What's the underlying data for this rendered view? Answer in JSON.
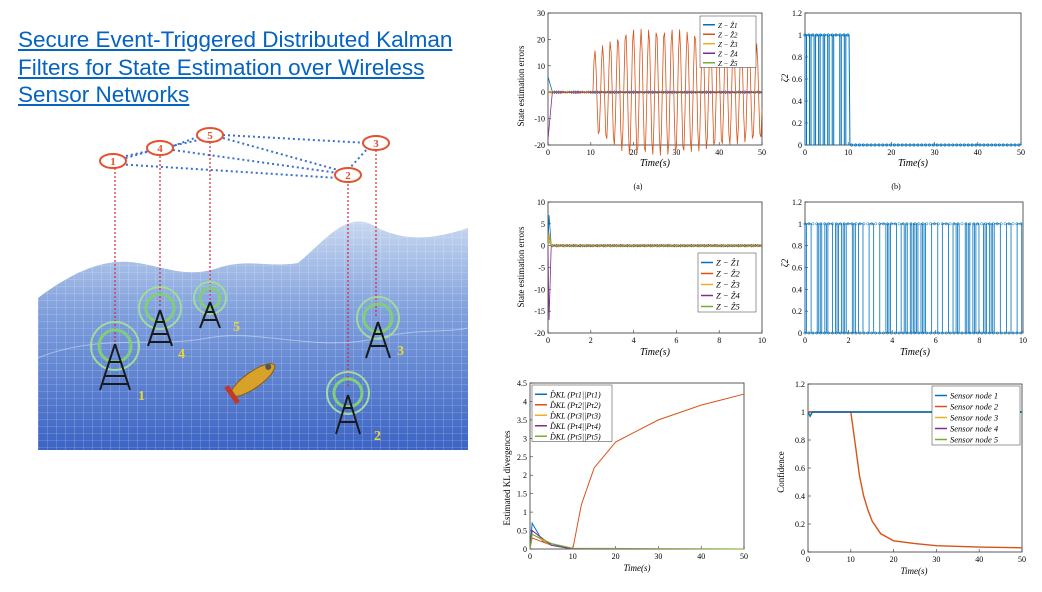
{
  "slide": {
    "title": "Secure Event-Triggered Distributed Kalman Filters for State Estimation over Wireless Sensor Networks"
  },
  "illustration": {
    "node_labels_top": [
      "1",
      "4",
      "5",
      "3",
      "2"
    ],
    "tower_labels": [
      "1",
      "4",
      "5",
      "3",
      "2"
    ]
  },
  "panel_captions": [
    "(a)",
    "(b)"
  ],
  "chart_data": [
    {
      "type": "line",
      "panel": "top-left",
      "ylabel": "State estimation errors",
      "xlabel": "Time(s)",
      "xlim": [
        0,
        50
      ],
      "ylim": [
        -20,
        30
      ],
      "xticks": [
        "0",
        "10",
        "20",
        "30",
        "40",
        "50"
      ],
      "yticks": [
        "30",
        "20",
        "10",
        "0",
        "-10",
        "-20"
      ],
      "legend": [
        "Z − Ẑ1",
        "Z − Ẑ2",
        "Z − Ẑ3",
        "Z − Ẑ4",
        "Z − Ẑ5"
      ],
      "legend_position": "top-right",
      "series": [
        {
          "name": "Z − Ẑ1",
          "color": "#0072bd",
          "note_values": {
            "x": [
              0,
              0.5,
              1,
              50
            ],
            "y": [
              0,
              6,
              0,
              0
            ]
          }
        },
        {
          "name": "Z − Ẑ2",
          "color": "#d95319",
          "note_values": {
            "x": [
              0,
              10,
              10.5,
              15,
              20,
              25,
              30,
              35,
              40,
              45,
              50
            ],
            "y": [
              0,
              0,
              15,
              22,
              24,
              25,
              24,
              23,
              20,
              18,
              18
            ],
            "envelope": "oscillating ± after t=10"
          }
        },
        {
          "name": "Z − Ẑ3",
          "color": "#edb120",
          "note_values": {
            "x": [
              0,
              50
            ],
            "y": [
              0,
              0
            ]
          }
        },
        {
          "name": "Z − Ẑ4",
          "color": "#7e2f8e",
          "note_values": {
            "x": [
              0,
              0.5,
              1,
              50
            ],
            "y": [
              0,
              -18,
              0,
              0
            ]
          }
        },
        {
          "name": "Z − Ẑ5",
          "color": "#77ac30",
          "note_values": {
            "x": [
              0,
              50
            ],
            "y": [
              0,
              0
            ]
          }
        }
      ]
    },
    {
      "type": "line",
      "panel": "top-right",
      "ylabel": "ζ2",
      "xlabel": "Time(s)",
      "xlim": [
        0,
        50
      ],
      "ylim": [
        0,
        1.2
      ],
      "xticks": [
        "0",
        "10",
        "20",
        "30",
        "40",
        "50"
      ],
      "yticks": [
        "1.2",
        "1",
        "0.8",
        "0.6",
        "0.4",
        "0.2",
        "0"
      ],
      "series": [
        {
          "name": "",
          "color": "#0072bd",
          "switch_until": 10,
          "value_after": 0
        }
      ]
    },
    {
      "type": "line",
      "panel": "middle-left",
      "ylabel": "State estimation errors",
      "xlabel": "Time(s)",
      "xlim": [
        0,
        10
      ],
      "ylim": [
        -20,
        10
      ],
      "xticks": [
        "0",
        "2",
        "4",
        "6",
        "8",
        "10"
      ],
      "yticks": [
        "10",
        "5",
        "0",
        "-5",
        "-10",
        "-15",
        "-20"
      ],
      "legend": [
        "Z − Ẑ1",
        "Z − Ẑ2",
        "Z − Ẑ3",
        "Z − Ẑ4",
        "Z − Ẑ5"
      ],
      "legend_position": "bottom-right",
      "series": [
        {
          "name": "Z − Ẑ1",
          "color": "#0072bd",
          "spike": 7
        },
        {
          "name": "Z − Ẑ2",
          "color": "#d95319",
          "spike": 2
        },
        {
          "name": "Z − Ẑ3",
          "color": "#edb120",
          "spike": 3
        },
        {
          "name": "Z − Ẑ4",
          "color": "#7e2f8e",
          "spike": -17
        },
        {
          "name": "Z − Ẑ5",
          "color": "#77ac30",
          "spike": 1
        }
      ]
    },
    {
      "type": "line",
      "panel": "middle-right",
      "ylabel": "ζ2",
      "xlabel": "Time(s)",
      "xlim": [
        0,
        10
      ],
      "ylim": [
        0,
        1.2
      ],
      "xticks": [
        "0",
        "2",
        "4",
        "6",
        "8",
        "10"
      ],
      "yticks": [
        "1.2",
        "1",
        "0.8",
        "0.6",
        "0.4",
        "0.2",
        "0"
      ],
      "series": [
        {
          "name": "",
          "color": "#0072bd",
          "switching": "0/1 throughout"
        }
      ]
    },
    {
      "type": "line",
      "panel": "bottom-left",
      "ylabel": "Estimated KL divergences",
      "xlabel": "Time(s)",
      "xlim": [
        0,
        50
      ],
      "ylim": [
        0,
        4.5
      ],
      "xticks": [
        "0",
        "10",
        "20",
        "30",
        "40",
        "50"
      ],
      "yticks": [
        "4.5",
        "4",
        "3.5",
        "3",
        "2.5",
        "2",
        "1.5",
        "1",
        "0.5",
        "0"
      ],
      "legend": [
        "D̂KL (Pτ1||Pτ1)",
        "D̂KL (Pτ2||Pτ2)",
        "D̂KL (Pτ3||Pτ3)",
        "D̂KL (Pτ4||Pτ4)",
        "D̂KL (Pτ5||Pτ5)"
      ],
      "legend_position": "top-left",
      "series": [
        {
          "name": "D̂KL (Pτ1||Pτ1)",
          "color": "#0072bd",
          "x": [
            0,
            0.5,
            3,
            8,
            10,
            50
          ],
          "y": [
            0,
            0.7,
            0.2,
            0.05,
            0,
            0
          ]
        },
        {
          "name": "D̂KL (Pτ2||Pτ2)",
          "color": "#d95319",
          "x": [
            0,
            0.5,
            5,
            10,
            10.5,
            12,
            15,
            20,
            25,
            30,
            35,
            40,
            45,
            50
          ],
          "y": [
            0,
            0.3,
            0.1,
            0,
            0.3,
            1.2,
            2.2,
            2.9,
            3.2,
            3.5,
            3.7,
            3.9,
            4.05,
            4.2
          ]
        },
        {
          "name": "D̂KL (Pτ3||Pτ3)",
          "color": "#edb120",
          "x": [
            0,
            0.5,
            5,
            10,
            50
          ],
          "y": [
            0,
            0.4,
            0.1,
            0,
            0
          ]
        },
        {
          "name": "D̂KL (Pτ4||Pτ4)",
          "color": "#7e2f8e",
          "x": [
            0,
            0.5,
            5,
            10,
            50
          ],
          "y": [
            0,
            0.5,
            0.1,
            0,
            0
          ]
        },
        {
          "name": "D̂KL (Pτ5||Pτ5)",
          "color": "#77ac30",
          "x": [
            0,
            0.5,
            5,
            10,
            50
          ],
          "y": [
            0,
            0.4,
            0.15,
            0.02,
            0
          ]
        }
      ]
    },
    {
      "type": "line",
      "panel": "bottom-right",
      "ylabel": "Confidence",
      "xlabel": "Time(s)",
      "xlim": [
        0,
        50
      ],
      "ylim": [
        0,
        1.2
      ],
      "xticks": [
        "0",
        "10",
        "20",
        "30",
        "40",
        "50"
      ],
      "yticks": [
        "1.2",
        "1",
        "0.8",
        "0.6",
        "0.4",
        "0.2",
        "0"
      ],
      "legend": [
        "Sensor node 1",
        "Sensor node 2",
        "Sensor node 3",
        "Sensor node 4",
        "Sensor node 5"
      ],
      "legend_position": "top-right",
      "series": [
        {
          "name": "Sensor node 1",
          "color": "#0072bd",
          "x": [
            0,
            0.5,
            1,
            50
          ],
          "y": [
            1,
            0.97,
            1,
            1
          ]
        },
        {
          "name": "Sensor node 2",
          "color": "#d95319",
          "x": [
            0,
            10,
            11,
            12,
            13,
            14,
            15,
            17,
            20,
            25,
            30,
            40,
            50
          ],
          "y": [
            1,
            1,
            0.78,
            0.55,
            0.4,
            0.3,
            0.22,
            0.13,
            0.08,
            0.06,
            0.045,
            0.035,
            0.03
          ]
        },
        {
          "name": "Sensor node 3",
          "color": "#edb120",
          "x": [
            0,
            50
          ],
          "y": [
            1,
            1
          ]
        },
        {
          "name": "Sensor node 4",
          "color": "#7e2f8e",
          "x": [
            0,
            50
          ],
          "y": [
            1,
            1
          ]
        },
        {
          "name": "Sensor node 5",
          "color": "#77ac30",
          "x": [
            0,
            50
          ],
          "y": [
            1,
            1
          ]
        }
      ]
    }
  ]
}
